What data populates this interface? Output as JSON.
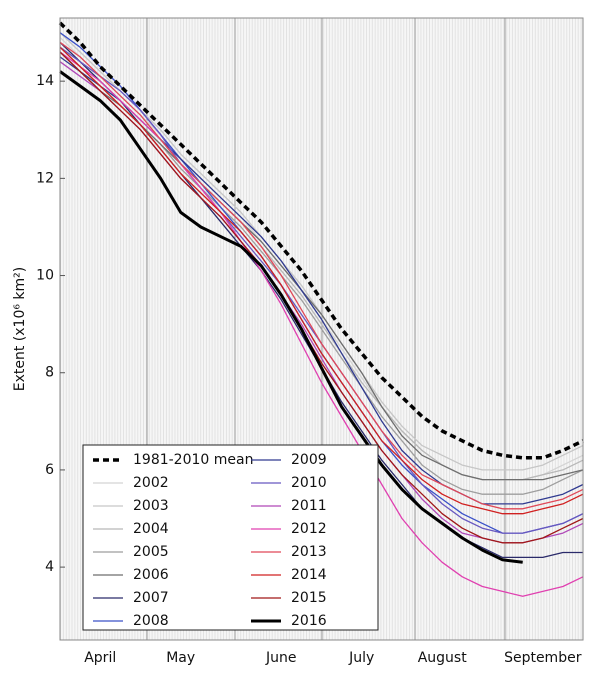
{
  "chart_data": {
    "type": "line",
    "y_label": "Extent (x10⁶ km²)",
    "categories": [
      null,
      null,
      "April",
      null,
      null,
      null,
      "May",
      null,
      null,
      null,
      null,
      "June",
      null,
      null,
      null,
      "July",
      null,
      null,
      null,
      "August",
      null,
      null,
      null,
      null,
      "September",
      null,
      null
    ],
    "ylim": [
      2.5,
      15.3
    ],
    "yticks": [
      4,
      6,
      8,
      10,
      12,
      14
    ],
    "legend": "lower left",
    "series": [
      {
        "name": "1981-2010 mean",
        "color": "#000000",
        "style": "dashed",
        "linewidth": 3.5,
        "values": [
          15.2,
          14.8,
          14.3,
          13.9,
          13.5,
          13.1,
          12.7,
          12.3,
          11.9,
          11.5,
          11.1,
          10.6,
          10.1,
          9.5,
          8.9,
          8.4,
          7.9,
          7.5,
          7.1,
          6.8,
          6.6,
          6.4,
          6.3,
          6.25,
          6.25,
          6.4,
          6.6
        ]
      },
      {
        "name": "2002",
        "color": "#d4d4d4",
        "values": [
          14.9,
          14.5,
          14.1,
          13.7,
          13.3,
          12.9,
          12.4,
          12.0,
          11.6,
          11.2,
          10.7,
          10.2,
          9.7,
          9.1,
          8.5,
          7.9,
          7.3,
          6.8,
          6.4,
          6.1,
          5.9,
          5.8,
          5.8,
          5.8,
          5.9,
          6.1,
          6.3
        ]
      },
      {
        "name": "2003",
        "color": "#c6c6c6",
        "values": [
          15.0,
          14.6,
          14.2,
          13.8,
          13.4,
          13.0,
          12.5,
          12.1,
          11.7,
          11.3,
          10.8,
          10.3,
          9.8,
          9.2,
          8.6,
          8.0,
          7.4,
          6.9,
          6.5,
          6.3,
          6.1,
          6.0,
          6.0,
          6.0,
          6.1,
          6.3,
          6.5
        ]
      },
      {
        "name": "2004",
        "color": "#b8b8b8",
        "values": [
          14.8,
          14.4,
          14.0,
          13.6,
          13.2,
          12.8,
          12.3,
          11.9,
          11.5,
          11.1,
          10.6,
          10.1,
          9.6,
          9.0,
          8.4,
          7.8,
          7.3,
          6.8,
          6.4,
          6.1,
          5.9,
          5.8,
          5.8,
          5.8,
          5.9,
          6.0,
          6.2
        ]
      },
      {
        "name": "2005",
        "color": "#9e9e9e",
        "values": [
          14.7,
          14.3,
          13.9,
          13.5,
          13.1,
          12.7,
          12.2,
          11.8,
          11.4,
          11.0,
          10.5,
          10.0,
          9.5,
          8.9,
          8.3,
          7.7,
          7.1,
          6.6,
          6.1,
          5.8,
          5.6,
          5.5,
          5.5,
          5.5,
          5.6,
          5.8,
          6.0
        ]
      },
      {
        "name": "2006",
        "color": "#6e6e6e",
        "values": [
          14.6,
          14.2,
          13.8,
          13.5,
          13.1,
          12.7,
          12.3,
          11.9,
          11.5,
          11.1,
          10.7,
          10.2,
          9.7,
          9.2,
          8.6,
          8.0,
          7.3,
          6.7,
          6.3,
          6.1,
          5.9,
          5.8,
          5.8,
          5.8,
          5.8,
          5.9,
          6.0
        ]
      },
      {
        "name": "2007",
        "color": "#2a2a6a",
        "values": [
          14.8,
          14.4,
          14.0,
          13.6,
          13.1,
          12.6,
          12.1,
          11.6,
          11.1,
          10.6,
          10.1,
          9.5,
          8.8,
          8.1,
          7.4,
          6.8,
          6.2,
          5.7,
          5.2,
          4.9,
          4.6,
          4.4,
          4.2,
          4.2,
          4.2,
          4.3,
          4.3
        ]
      },
      {
        "name": "2008",
        "color": "#3a50c8",
        "values": [
          15.0,
          14.7,
          14.3,
          13.9,
          13.4,
          12.9,
          12.4,
          11.9,
          11.4,
          10.9,
          10.4,
          9.8,
          9.1,
          8.4,
          7.8,
          7.2,
          6.6,
          6.1,
          5.7,
          5.4,
          5.1,
          4.9,
          4.7,
          4.7,
          4.8,
          4.9,
          5.1
        ]
      },
      {
        "name": "2009",
        "color": "#303a90",
        "values": [
          14.5,
          14.2,
          13.9,
          13.6,
          13.2,
          12.8,
          12.4,
          12.0,
          11.6,
          11.2,
          10.8,
          10.3,
          9.7,
          9.1,
          8.4,
          7.7,
          7.0,
          6.4,
          6.0,
          5.7,
          5.5,
          5.3,
          5.3,
          5.3,
          5.4,
          5.5,
          5.7
        ]
      },
      {
        "name": "2010",
        "color": "#6858c0",
        "values": [
          14.7,
          14.4,
          14.1,
          13.8,
          13.4,
          12.9,
          12.3,
          11.8,
          11.3,
          10.8,
          10.3,
          9.8,
          9.2,
          8.6,
          8.0,
          7.4,
          6.8,
          6.2,
          5.7,
          5.3,
          5.0,
          4.8,
          4.7,
          4.7,
          4.8,
          4.9,
          5.1
        ]
      },
      {
        "name": "2011",
        "color": "#b048b8",
        "values": [
          14.4,
          14.1,
          13.8,
          13.4,
          13.0,
          12.5,
          12.0,
          11.6,
          11.2,
          10.7,
          10.2,
          9.6,
          9.0,
          8.3,
          7.6,
          7.0,
          6.4,
          5.9,
          5.4,
          5.0,
          4.7,
          4.6,
          4.5,
          4.5,
          4.6,
          4.7,
          4.9
        ]
      },
      {
        "name": "2012",
        "color": "#e040b0",
        "values": [
          14.6,
          14.3,
          14.0,
          13.6,
          13.2,
          12.8,
          12.3,
          11.8,
          11.3,
          10.7,
          10.1,
          9.4,
          8.6,
          7.8,
          7.1,
          6.4,
          5.7,
          5.0,
          4.5,
          4.1,
          3.8,
          3.6,
          3.5,
          3.4,
          3.5,
          3.6,
          3.8
        ]
      },
      {
        "name": "2013",
        "color": "#e04858",
        "values": [
          14.8,
          14.5,
          14.1,
          13.7,
          13.3,
          12.8,
          12.3,
          11.9,
          11.5,
          11.1,
          10.6,
          10.0,
          9.3,
          8.6,
          8.0,
          7.4,
          6.8,
          6.3,
          5.9,
          5.7,
          5.5,
          5.3,
          5.2,
          5.2,
          5.3,
          5.4,
          5.6
        ]
      },
      {
        "name": "2014",
        "color": "#d02020",
        "values": [
          14.7,
          14.3,
          13.9,
          13.5,
          13.1,
          12.6,
          12.1,
          11.7,
          11.3,
          10.9,
          10.4,
          9.8,
          9.1,
          8.4,
          7.8,
          7.2,
          6.6,
          6.2,
          5.8,
          5.5,
          5.3,
          5.2,
          5.1,
          5.1,
          5.2,
          5.3,
          5.5
        ]
      },
      {
        "name": "2015",
        "color": "#a01818",
        "values": [
          14.6,
          14.2,
          13.8,
          13.4,
          13.0,
          12.5,
          12.0,
          11.6,
          11.2,
          10.7,
          10.2,
          9.6,
          8.9,
          8.2,
          7.6,
          7.0,
          6.4,
          5.9,
          5.5,
          5.1,
          4.8,
          4.6,
          4.5,
          4.5,
          4.6,
          4.8,
          5.0
        ]
      },
      {
        "name": "2016",
        "color": "#000000",
        "linewidth": 3,
        "values": [
          14.2,
          13.9,
          13.6,
          13.2,
          12.6,
          12.0,
          11.3,
          11.0,
          10.8,
          10.6,
          10.2,
          9.6,
          8.9,
          8.1,
          7.3,
          6.7,
          6.1,
          5.6,
          5.2,
          4.9,
          4.6,
          4.35,
          4.15,
          4.1,
          null,
          null,
          null
        ]
      }
    ]
  }
}
